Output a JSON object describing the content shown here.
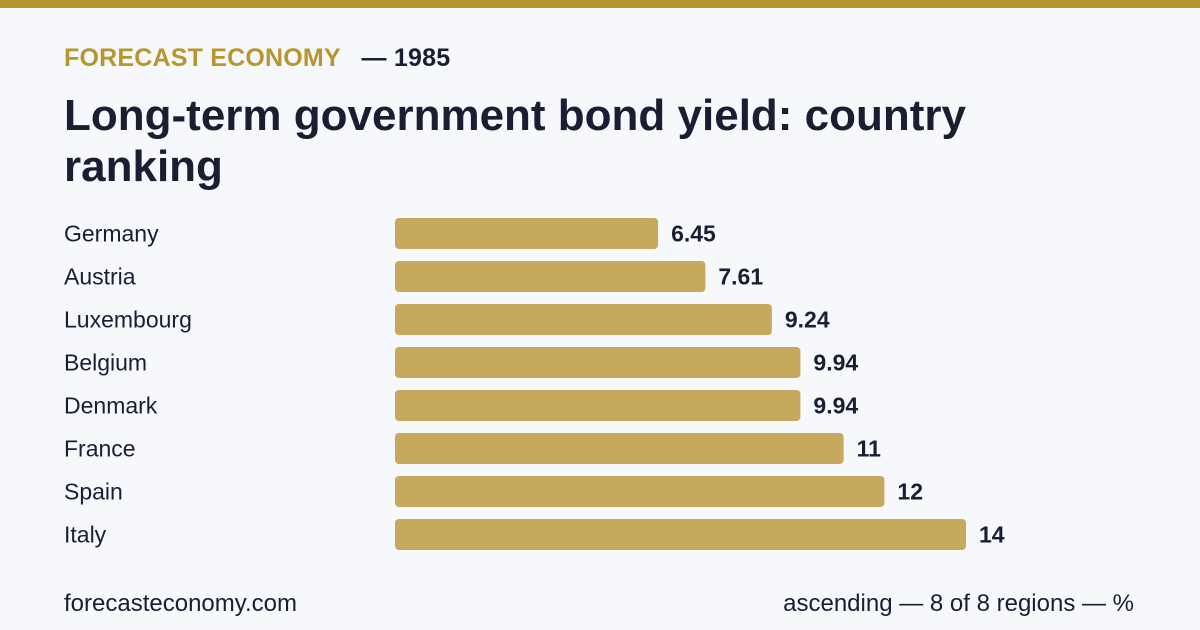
{
  "header": {
    "brand": "FORECAST ECONOMY",
    "year": "— 1985"
  },
  "footer": {
    "site": "forecasteconomy.com",
    "note": "ascending — 8 of 8 regions — %"
  },
  "colors": {
    "accent": "#b8962e",
    "bar": "#c6a95c",
    "text": "#1b1d33",
    "background": "#f7f8fc"
  },
  "chart_data": {
    "type": "bar",
    "orientation": "horizontal",
    "title": "Long-term government bond yield: country ranking",
    "categories": [
      "Germany",
      "Austria",
      "Luxembourg",
      "Belgium",
      "Denmark",
      "France",
      "Spain",
      "Italy"
    ],
    "values": [
      6.45,
      7.61,
      9.24,
      9.94,
      9.94,
      11,
      12,
      14
    ],
    "value_labels": [
      "6.45",
      "7.61",
      "9.24",
      "9.94",
      "9.94",
      "11",
      "12",
      "14"
    ],
    "unit": "%",
    "sort": "ascending",
    "grid": false,
    "legend": "none"
  }
}
